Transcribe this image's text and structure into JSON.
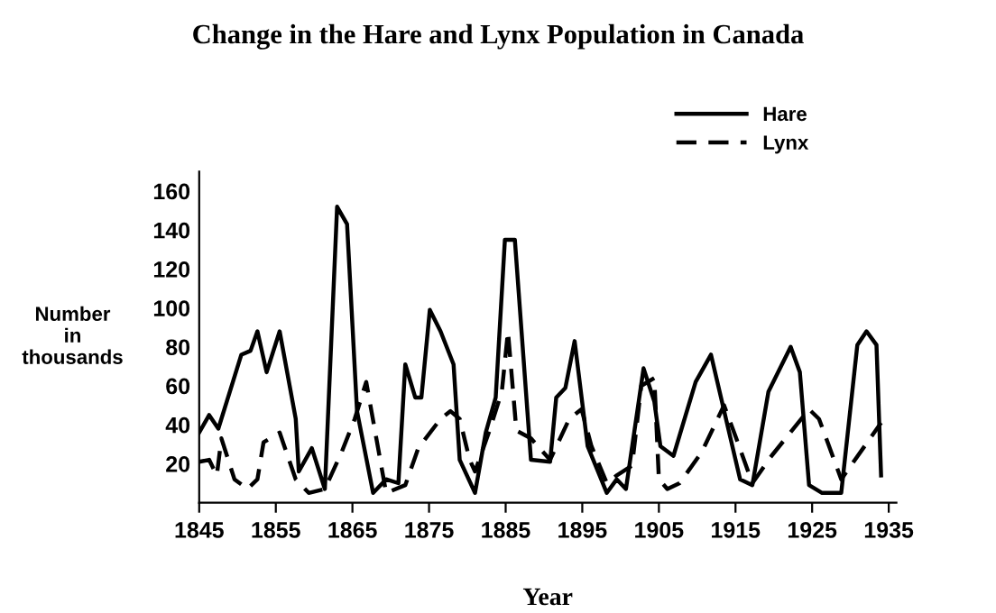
{
  "chart_data": {
    "type": "line",
    "title": "Change in the Hare and Lynx Population in Canada",
    "xlabel": "Year",
    "ylabel": "Number\nin\nthousands",
    "series": [
      {
        "name": "Hare",
        "color": "#000000",
        "line_style": "solid",
        "x": [
          1845,
          1846.3,
          1847.5,
          1850.5,
          1851.7,
          1852.6,
          1853.8,
          1855.5,
          1857.6,
          1858,
          1859.7,
          1861.4,
          1863,
          1864.3,
          1865.6,
          1867.7,
          1869.4,
          1871,
          1871.9,
          1873.2,
          1874,
          1875.1,
          1876.5,
          1878.2,
          1879,
          1881,
          1882.4,
          1883.7,
          1884.9,
          1886.2,
          1888.3,
          1890.8,
          1891.6,
          1892.8,
          1894,
          1895.7,
          1898.2,
          1899.5,
          1900.7,
          1903,
          1904.4,
          1905.2,
          1906.9,
          1909.8,
          1911.8,
          1915.6,
          1917.2,
          1919.3,
          1922.2,
          1923.4,
          1924.6,
          1926.3,
          1928.8,
          1930.9,
          1932.1,
          1933.4,
          1934
        ],
        "values": [
          36,
          45,
          38,
          76,
          78,
          88,
          67,
          88,
          43,
          16,
          28,
          7,
          152,
          143,
          47,
          5,
          12,
          10,
          71,
          54,
          54,
          99,
          88,
          71,
          22,
          5,
          36,
          54,
          135,
          135,
          22,
          21,
          54,
          59,
          83,
          29,
          5,
          12,
          7,
          69,
          52,
          29,
          24,
          62,
          76,
          12,
          9,
          57,
          80,
          67,
          9,
          5,
          5,
          81,
          88,
          81,
          14
        ]
      },
      {
        "name": "Lynx",
        "color": "#000000",
        "line_style": "dashed",
        "x": [
          1845,
          1846.3,
          1847.3,
          1847.9,
          1849.6,
          1851.3,
          1852.6,
          1853.4,
          1855.5,
          1857.6,
          1859.3,
          1861.4,
          1863.6,
          1865.3,
          1866.8,
          1869.4,
          1871.9,
          1873.6,
          1876.5,
          1877.8,
          1879,
          1880.3,
          1881,
          1882.8,
          1884.5,
          1885.3,
          1886.4,
          1888.3,
          1890.8,
          1893.3,
          1894.9,
          1896.2,
          1898.2,
          1899.5,
          1901.5,
          1902.7,
          1904.4,
          1905,
          1906.1,
          1907.7,
          1910.6,
          1913.5,
          1915.1,
          1917.2,
          1919.7,
          1924.6,
          1925.9,
          1928.8,
          1934
        ],
        "values": [
          21,
          22,
          14,
          33,
          12,
          7,
          12,
          31,
          36,
          12,
          5,
          7,
          26,
          43,
          62,
          5,
          9,
          28,
          43,
          47,
          43,
          22,
          16,
          36,
          57,
          88,
          37,
          33,
          22,
          43,
          48,
          29,
          10,
          14,
          19,
          60,
          64,
          12,
          7,
          10,
          26,
          50,
          33,
          10,
          24,
          48,
          43,
          12,
          41
        ]
      }
    ],
    "xlim": [
      1845,
      1936
    ],
    "xticks": [
      1845,
      1855,
      1865,
      1875,
      1885,
      1895,
      1905,
      1915,
      1925,
      1935
    ],
    "ylim": [
      0,
      170
    ],
    "yticks": [
      20,
      40,
      60,
      80,
      100,
      120,
      140,
      160
    ],
    "grid": false,
    "legend": "top right",
    "marker": "none"
  }
}
